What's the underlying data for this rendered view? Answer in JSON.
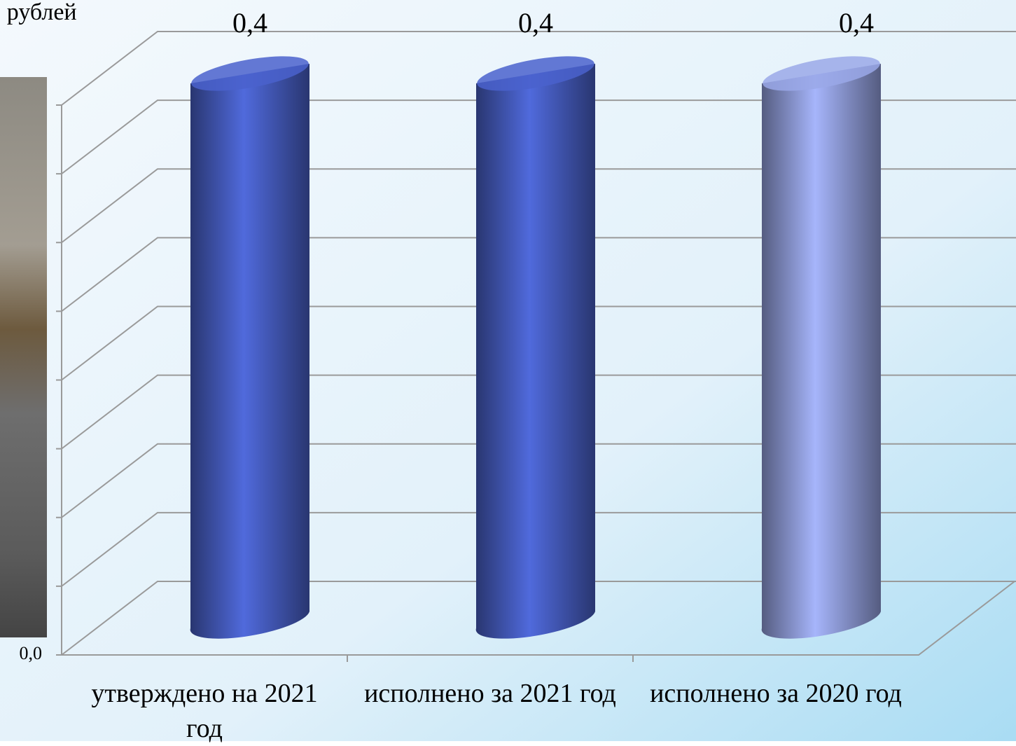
{
  "chart_data": {
    "type": "bar3d",
    "title": "тыс. рублей",
    "categories": [
      "утверждено на 2021 год",
      "исполнено за 2021 год",
      "исполнено за 2020 год"
    ],
    "values": [
      0.4,
      0.4,
      0.4
    ],
    "value_labels": [
      "0,4",
      "0,4",
      "0,4"
    ],
    "colors": [
      "#4a62cc",
      "#4a62cc",
      "#9aa8e8"
    ],
    "ylim": [
      0,
      0.4
    ],
    "yticks": [
      {
        "value": 0,
        "label": "0,0"
      },
      {
        "value": 0.05,
        "label": null
      },
      {
        "value": 0.1,
        "label": null
      },
      {
        "value": 0.15,
        "label": null
      },
      {
        "value": 0.2,
        "label": null
      },
      {
        "value": 0.25,
        "label": null
      },
      {
        "value": 0.3,
        "label": null
      },
      {
        "value": 0.35,
        "label": null
      },
      {
        "value": 0.4,
        "label": null
      }
    ],
    "grid": true
  }
}
